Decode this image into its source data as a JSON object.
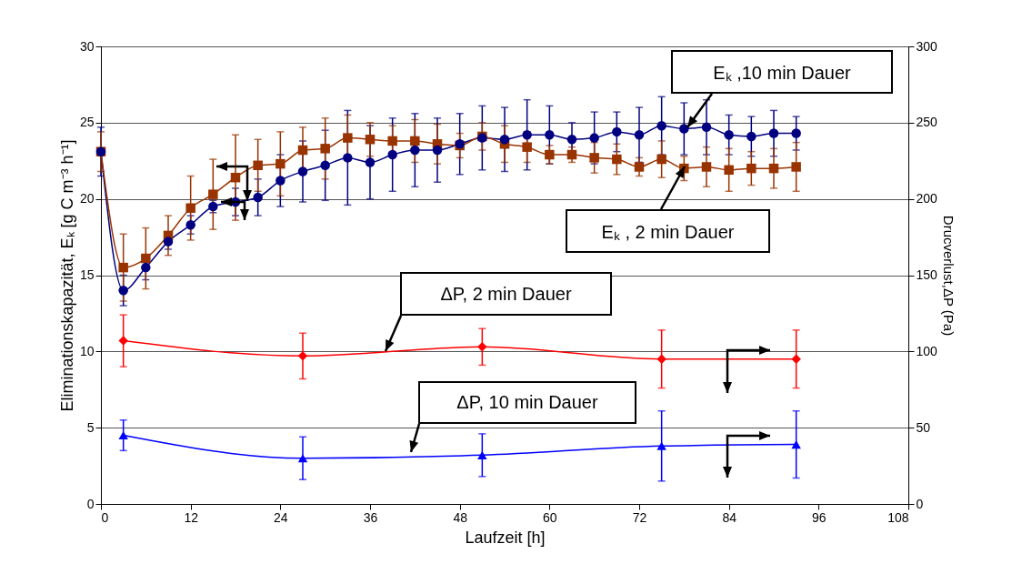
{
  "chart_data": {
    "type": "line",
    "xlabel": "Laufzeit [h]",
    "ylabel": "Eliminationskapazität, Eₖ  [g C m⁻³ h⁻¹]",
    "y2label": "Drucverlust,ΔP (Pa)",
    "xlim": [
      0,
      108
    ],
    "xticks": [
      0,
      12,
      24,
      36,
      48,
      60,
      72,
      84,
      96,
      108
    ],
    "ylim": [
      0,
      30
    ],
    "yticks": [
      0,
      5,
      10,
      15,
      20,
      25,
      30
    ],
    "y2lim": [
      0,
      300
    ],
    "y2ticks": [
      0,
      50,
      100,
      150,
      200,
      250,
      300
    ],
    "grid": "y",
    "series": [
      {
        "name": "Eₖ ,10 min Dauer",
        "color": "#000080",
        "marker": "circle",
        "x": [
          0,
          3,
          6,
          9,
          12,
          15,
          18,
          21,
          24,
          27,
          30,
          33,
          36,
          39,
          42,
          45,
          48,
          51,
          54,
          57,
          60,
          63,
          66,
          69,
          72,
          75,
          78,
          81,
          84,
          87,
          90,
          93
        ],
        "values": [
          23.1,
          14.0,
          15.5,
          17.2,
          18.3,
          19.5,
          19.8,
          20.1,
          21.2,
          21.8,
          22.2,
          22.7,
          22.4,
          22.9,
          23.2,
          23.2,
          23.6,
          24.0,
          23.9,
          24.2,
          24.2,
          23.9,
          24.0,
          24.4,
          24.2,
          24.8,
          24.6,
          24.7,
          24.2,
          24.1,
          24.3,
          24.3
        ],
        "errors": [
          1.6,
          1.0,
          0.8,
          0.5,
          0.6,
          0.4,
          0.9,
          1.2,
          1.7,
          2.0,
          2.3,
          3.1,
          2.4,
          2.4,
          2.4,
          2.1,
          2.0,
          2.1,
          2.1,
          2.3,
          1.9,
          1.1,
          1.7,
          1.3,
          1.8,
          1.9,
          1.7,
          1.8,
          1.3,
          1.3,
          1.5,
          1.1
        ]
      },
      {
        "name": "Eₖ , 2 min Dauer",
        "color": "#993300",
        "marker": "square",
        "x": [
          0,
          3,
          6,
          9,
          12,
          15,
          18,
          21,
          24,
          27,
          30,
          33,
          36,
          39,
          42,
          45,
          48,
          51,
          54,
          57,
          60,
          63,
          66,
          69,
          72,
          75,
          78,
          81,
          84,
          87,
          90,
          93
        ],
        "values": [
          23.1,
          15.5,
          16.1,
          17.6,
          19.4,
          20.3,
          21.4,
          22.2,
          22.3,
          23.2,
          23.3,
          24.0,
          23.9,
          23.8,
          23.8,
          23.6,
          23.5,
          24.1,
          23.6,
          23.4,
          22.9,
          22.9,
          22.7,
          22.6,
          22.1,
          22.6,
          22.0,
          22.1,
          21.9,
          22.0,
          22.0,
          22.1
        ],
        "errors": [
          1.3,
          2.2,
          2.0,
          1.3,
          2.1,
          2.3,
          2.8,
          1.7,
          2.1,
          1.5,
          2.0,
          1.5,
          1.1,
          1.0,
          1.4,
          1.3,
          0.8,
          0.9,
          1.2,
          1.0,
          0.6,
          0.5,
          1.0,
          1.0,
          0.6,
          1.2,
          0.8,
          1.3,
          1.4,
          1.1,
          1.3,
          1.6
        ]
      },
      {
        "name": "ΔP, 2 min Dauer",
        "color": "#ff0000",
        "marker": "diamond",
        "axis": "y2",
        "x": [
          3,
          27,
          51,
          75,
          93
        ],
        "values": [
          107,
          97,
          103,
          95,
          95
        ],
        "errors": [
          17,
          15,
          12,
          19,
          19
        ]
      },
      {
        "name": "ΔP, 10 min Dauer",
        "color": "#0000ff",
        "marker": "triangle",
        "axis": "y2",
        "x": [
          3,
          27,
          51,
          75,
          93
        ],
        "values": [
          45,
          30,
          32,
          38,
          39
        ],
        "errors": [
          10,
          14,
          14,
          23,
          22
        ]
      }
    ]
  }
}
